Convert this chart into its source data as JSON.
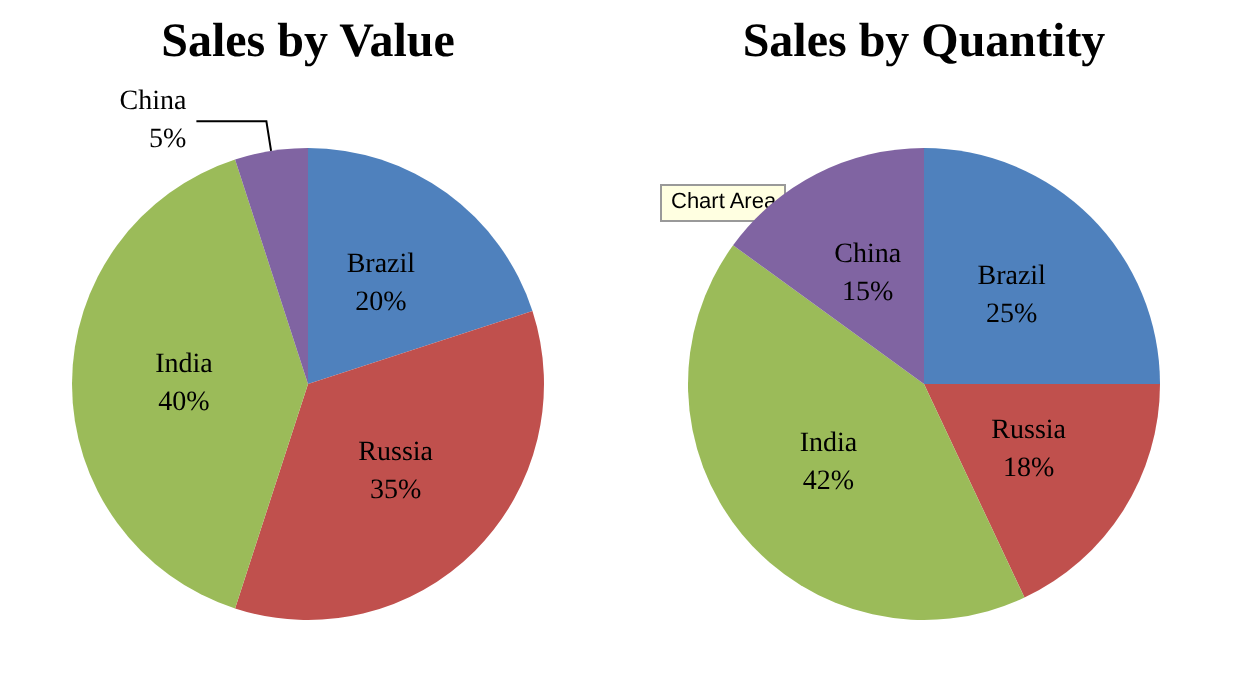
{
  "chart_data": [
    {
      "type": "pie",
      "title": "Sales by Value",
      "categories": [
        "Brazil",
        "Russia",
        "India",
        "China"
      ],
      "values": [
        20,
        35,
        40,
        5
      ],
      "colors": [
        "#4f81bd",
        "#c0504d",
        "#9bbb59",
        "#8064a2"
      ],
      "value_labels": [
        "20%",
        "35%",
        "40%",
        "5%"
      ]
    },
    {
      "type": "pie",
      "title": "Sales by Quantity",
      "categories": [
        "Brazil",
        "Russia",
        "India",
        "China"
      ],
      "values": [
        25,
        18,
        42,
        15
      ],
      "colors": [
        "#4f81bd",
        "#c0504d",
        "#9bbb59",
        "#8064a2"
      ],
      "value_labels": [
        "25%",
        "18%",
        "42%",
        "15%"
      ],
      "annotations": [
        "Chart Area"
      ]
    }
  ]
}
